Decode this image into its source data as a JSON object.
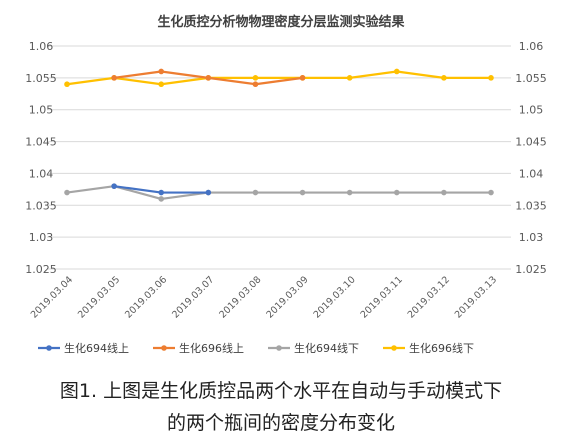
{
  "chart_data": {
    "type": "line",
    "title": "生化质控分析物物理密度分层监测实验结果",
    "categories": [
      "2019.03.04",
      "2019.03.05",
      "2019.03.06",
      "2019.03.07",
      "2019.03.08",
      "2019.03.09",
      "2019.03.10",
      "2019.03.11",
      "2019.03.12",
      "2019.03.13"
    ],
    "ylim": [
      1.025,
      1.06
    ],
    "yticks": [
      "1.06",
      "1.055",
      "1.05",
      "1.045",
      "1.04",
      "1.035",
      "1.03",
      "1.025"
    ],
    "grid": true,
    "legend_position": "bottom",
    "series": [
      {
        "name": "生化694线上",
        "color": "#4472C4",
        "values": [
          null,
          1.038,
          1.037,
          1.037,
          null,
          null,
          null,
          null,
          null,
          null
        ]
      },
      {
        "name": "生化696线上",
        "color": "#ED7D31",
        "values": [
          null,
          1.055,
          1.056,
          1.055,
          1.054,
          1.055,
          null,
          null,
          null,
          null
        ]
      },
      {
        "name": "生化694线下",
        "color": "#A5A5A5",
        "values": [
          1.037,
          1.038,
          1.036,
          1.037,
          1.037,
          1.037,
          1.037,
          1.037,
          1.037,
          1.037
        ]
      },
      {
        "name": "生化696线下",
        "color": "#FFC000",
        "values": [
          1.054,
          1.055,
          1.054,
          1.055,
          1.055,
          1.055,
          1.055,
          1.056,
          1.055,
          1.055
        ]
      }
    ]
  },
  "caption": {
    "line1": "图1. 上图是生化质控品两个水平在自动与手动模式下",
    "line2": "的两个瓶间的密度分布变化"
  }
}
